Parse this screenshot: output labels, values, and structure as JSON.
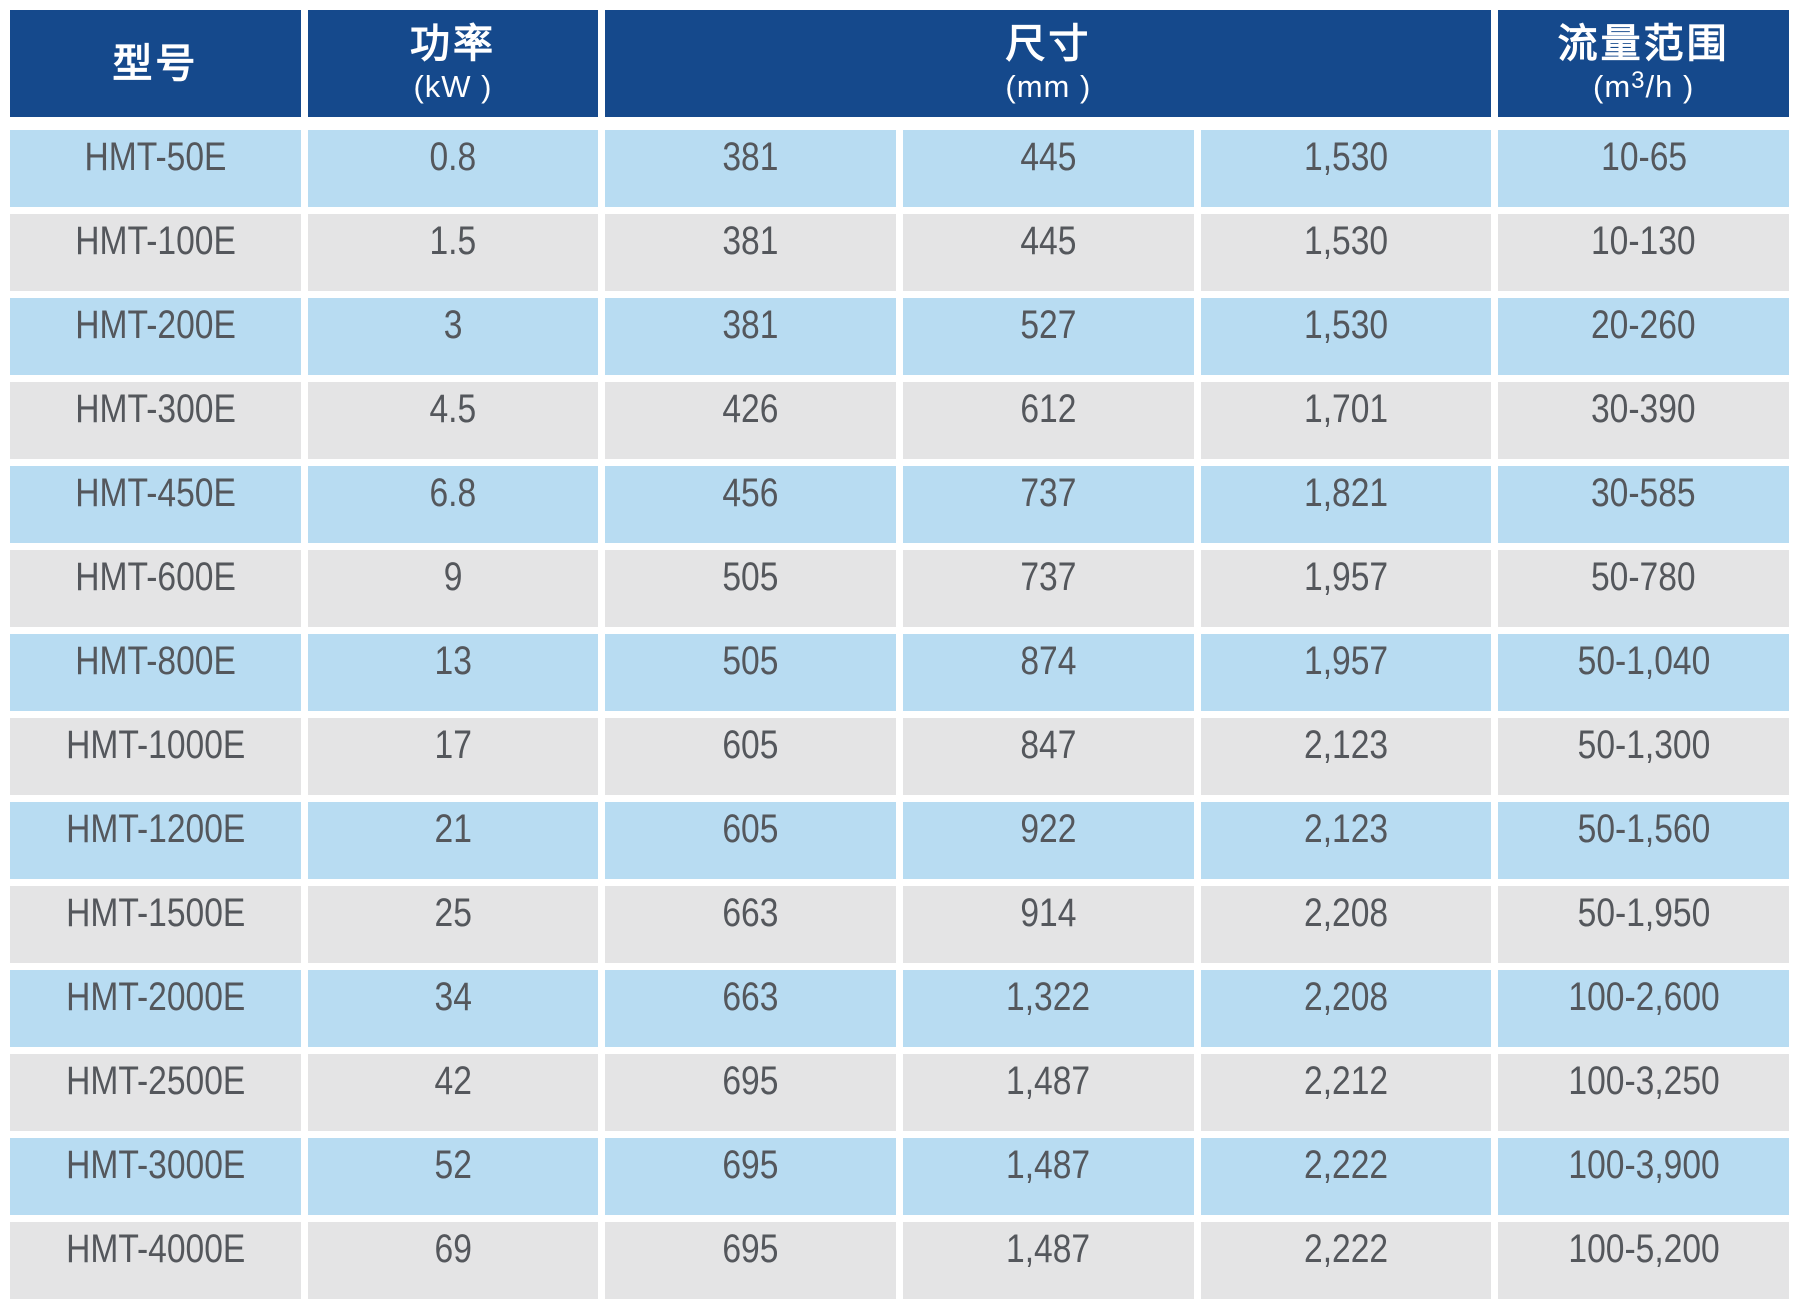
{
  "table": {
    "header": {
      "model": "型号",
      "power_title": "功率",
      "power_unit": "(kW )",
      "dim_title": "尺寸",
      "dim_unit": "(mm )",
      "flow_title": "流量范围",
      "flow_unit_prefix": "(m",
      "flow_unit_sup": "3",
      "flow_unit_suffix": "/h )"
    },
    "columns": [
      "model",
      "power-kw",
      "dim-1",
      "dim-2",
      "dim-3",
      "flow-range"
    ],
    "rows": [
      [
        "HMT-50E",
        "0.8",
        "381",
        "445",
        "1,530",
        "10-65"
      ],
      [
        "HMT-100E",
        "1.5",
        "381",
        "445",
        "1,530",
        "10-130"
      ],
      [
        "HMT-200E",
        "3",
        "381",
        "527",
        "1,530",
        "20-260"
      ],
      [
        "HMT-300E",
        "4.5",
        "426",
        "612",
        "1,701",
        "30-390"
      ],
      [
        "HMT-450E",
        "6.8",
        "456",
        "737",
        "1,821",
        "30-585"
      ],
      [
        "HMT-600E",
        "9",
        "505",
        "737",
        "1,957",
        "50-780"
      ],
      [
        "HMT-800E",
        "13",
        "505",
        "874",
        "1,957",
        "50-1,040"
      ],
      [
        "HMT-1000E",
        "17",
        "605",
        "847",
        "2,123",
        "50-1,300"
      ],
      [
        "HMT-1200E",
        "21",
        "605",
        "922",
        "2,123",
        "50-1,560"
      ],
      [
        "HMT-1500E",
        "25",
        "663",
        "914",
        "2,208",
        "50-1,950"
      ],
      [
        "HMT-2000E",
        "34",
        "663",
        "1,322",
        "2,208",
        "100-2,600"
      ],
      [
        "HMT-2500E",
        "42",
        "695",
        "1,487",
        "2,212",
        "100-3,250"
      ],
      [
        "HMT-3000E",
        "52",
        "695",
        "1,487",
        "2,222",
        "100-3,900"
      ],
      [
        "HMT-4000E",
        "69",
        "695",
        "1,487",
        "2,222",
        "100-5,200"
      ]
    ]
  },
  "colors": {
    "header_bg": "#15498c",
    "header_text": "#ffffff",
    "row_blue": "#b8dcf2",
    "row_gray": "#e4e4e5",
    "cell_text": "#54575c",
    "background": "#ffffff"
  }
}
